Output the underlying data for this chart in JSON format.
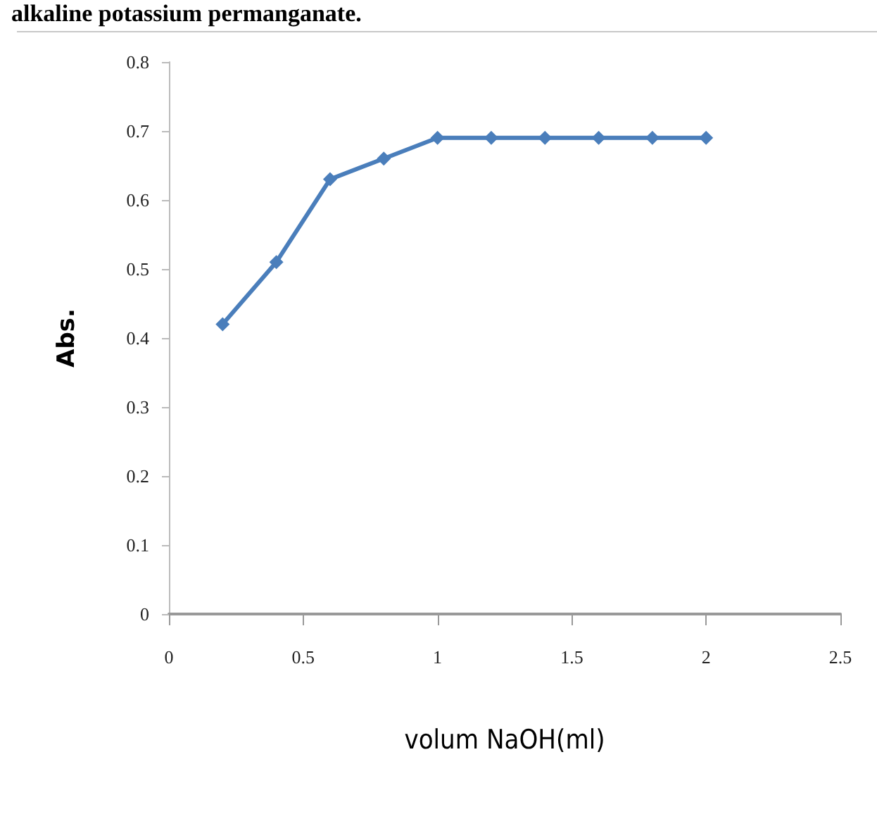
{
  "chart_data": {
    "type": "line",
    "title": "alkaline potassium permanganate.",
    "xlabel": "volum NaOH(ml)",
    "ylabel": "Abs.",
    "x": [
      0.2,
      0.4,
      0.6,
      0.8,
      1.0,
      1.2,
      1.4,
      1.6,
      1.8,
      2.0
    ],
    "series": [
      {
        "color": "#4a7ebb",
        "values": [
          0.42,
          0.51,
          0.63,
          0.66,
          0.69,
          0.69,
          0.69,
          0.69,
          0.69,
          0.69
        ]
      }
    ],
    "xlim": [
      0,
      2.5
    ],
    "xticks": [
      0,
      0.5,
      1,
      1.5,
      2,
      2.5
    ],
    "ylim": [
      0,
      0.8
    ],
    "yticks": [
      0,
      0.1,
      0.2,
      0.3,
      0.4,
      0.5,
      0.6,
      0.7,
      0.8
    ],
    "grid": false,
    "marker": "diamond",
    "line_style": "solid"
  }
}
